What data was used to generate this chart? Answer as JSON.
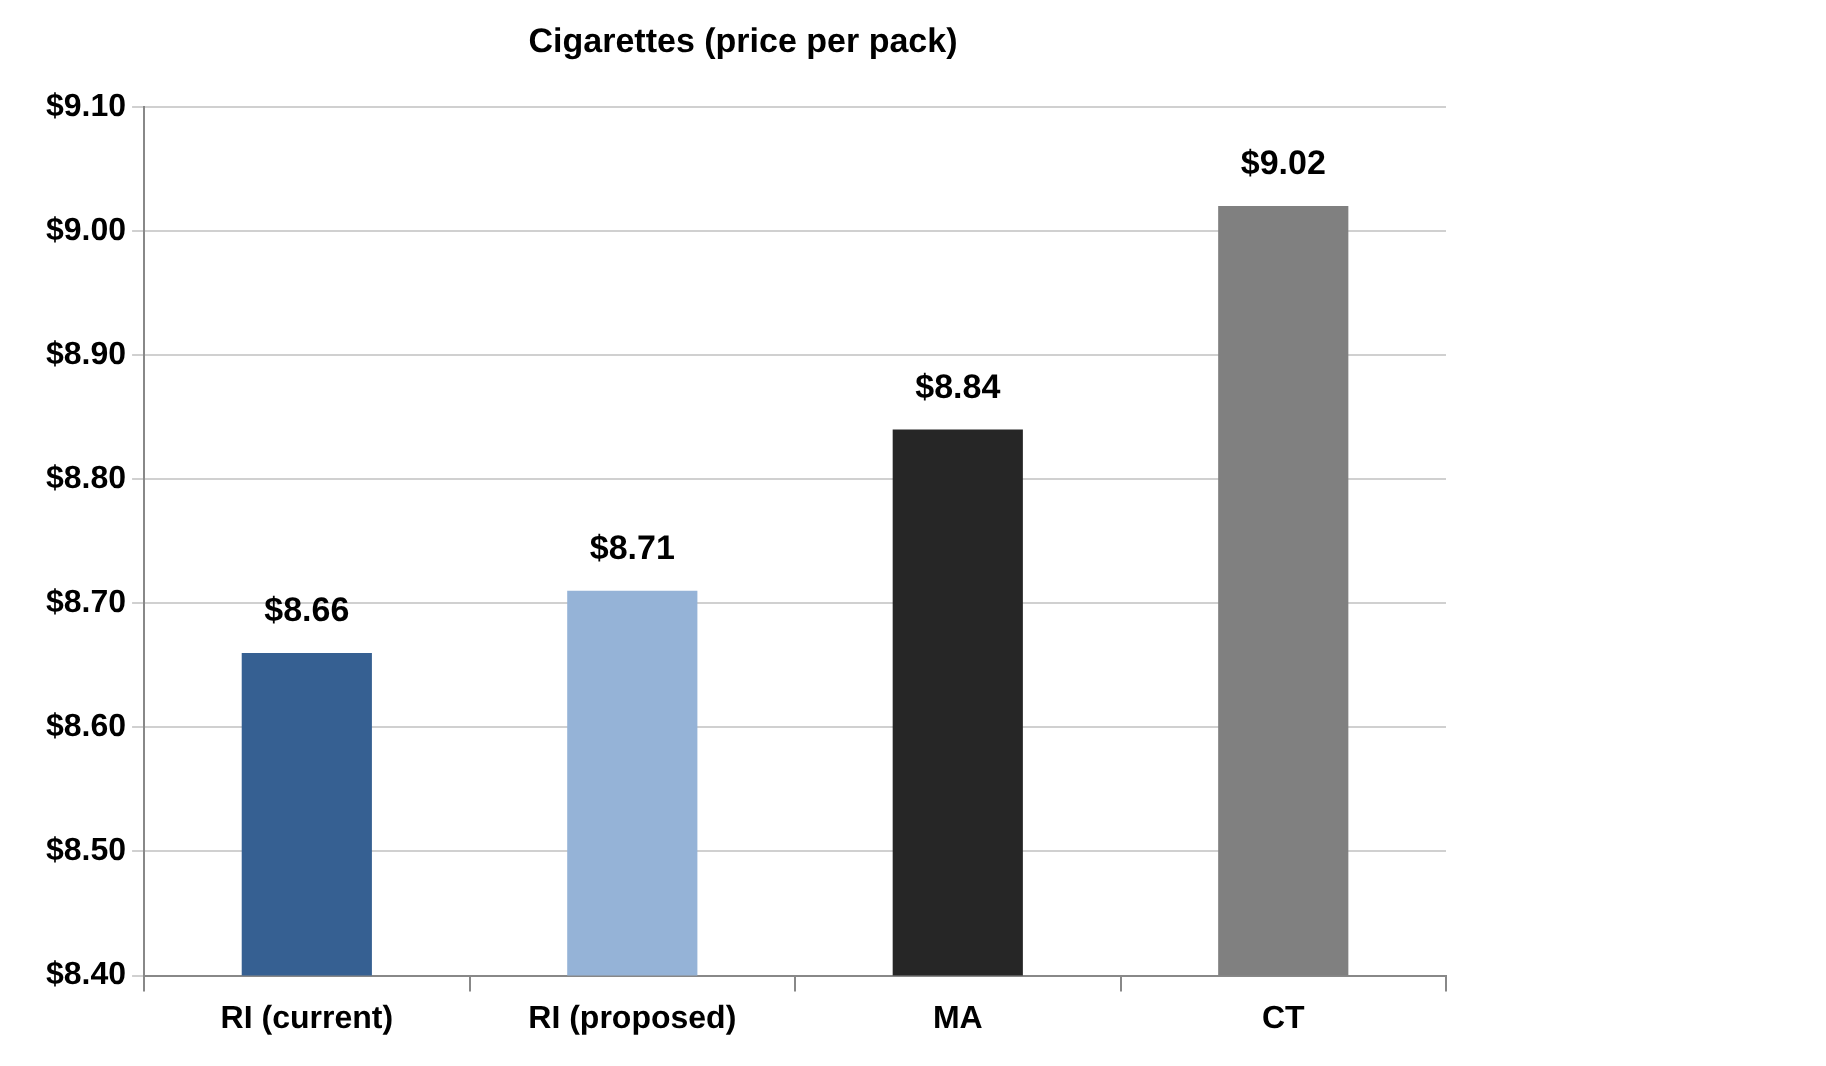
{
  "chart_data": {
    "type": "bar",
    "title": "Cigarettes (price per pack)",
    "categories": [
      "RI (current)",
      "RI (proposed)",
      "MA",
      "CT"
    ],
    "values": [
      8.66,
      8.71,
      8.84,
      9.02
    ],
    "colors": [
      "#366092",
      "#95b3d7",
      "#262626",
      "#808080"
    ],
    "value_labels": [
      "$8.66",
      "$8.71",
      "$8.84",
      "$9.02"
    ],
    "ylim": [
      8.4,
      9.1
    ],
    "yticks": [
      {
        "value": 8.4,
        "label": "$8.40"
      },
      {
        "value": 8.5,
        "label": "$8.50"
      },
      {
        "value": 8.6,
        "label": "$8.60"
      },
      {
        "value": 8.7,
        "label": "$8.70"
      },
      {
        "value": 8.8,
        "label": "$8.80"
      },
      {
        "value": 8.9,
        "label": "$8.90"
      },
      {
        "value": 9.0,
        "label": "$9.00"
      },
      {
        "value": 9.1,
        "label": "$9.10"
      }
    ],
    "grid": "y",
    "legend": false
  }
}
